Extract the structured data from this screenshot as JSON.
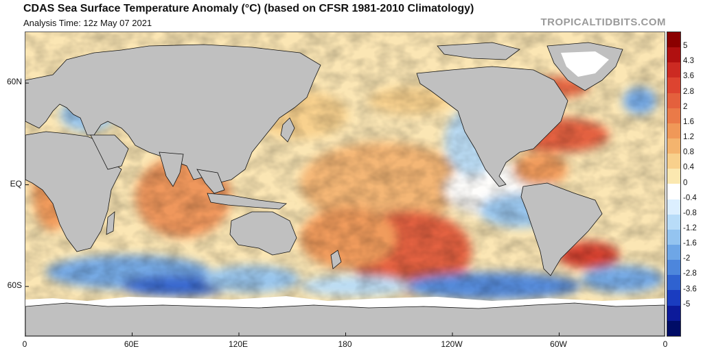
{
  "title": "CDAS Sea Surface Temperature Anomaly (°C) (based on CFSR 1981-2010 Climatology)",
  "subtitle": "Analysis Time: 12z May 07 2021",
  "brand": "TROPICALTIDBITS.COM",
  "map": {
    "lat_labels": [
      "60N",
      "EQ",
      "60S"
    ],
    "lat_values": [
      60,
      0,
      -60
    ],
    "lon_labels": [
      "0",
      "60E",
      "120E",
      "180",
      "120W",
      "60W",
      "0"
    ],
    "lon_values": [
      0,
      60,
      120,
      180,
      240,
      300,
      360
    ],
    "lat_range": [
      -90,
      90
    ],
    "lon_range": [
      0,
      360
    ],
    "land_color": "#c0c0c0",
    "sea_ice_color": "#ffffff"
  },
  "colorbar": {
    "labels": [
      "5",
      "4.3",
      "3.6",
      "2.8",
      "2",
      "1.6",
      "1.2",
      "0.8",
      "0.4",
      "0",
      "-0.4",
      "-0.8",
      "-1.2",
      "-1.6",
      "-2",
      "-2.8",
      "-3.6",
      "-5"
    ],
    "colors": [
      "#8b0000",
      "#b01010",
      "#cc2a22",
      "#dd4430",
      "#e4603d",
      "#ea7a48",
      "#f09858",
      "#f4b46e",
      "#f8d08c",
      "#fbe8b0",
      "#ffffff",
      "#dcefff",
      "#b8dcf8",
      "#94c4f0",
      "#6ea6e6",
      "#4d86dc",
      "#2f62d0",
      "#1a3cc0",
      "#0c1a9a",
      "#000c66"
    ]
  }
}
